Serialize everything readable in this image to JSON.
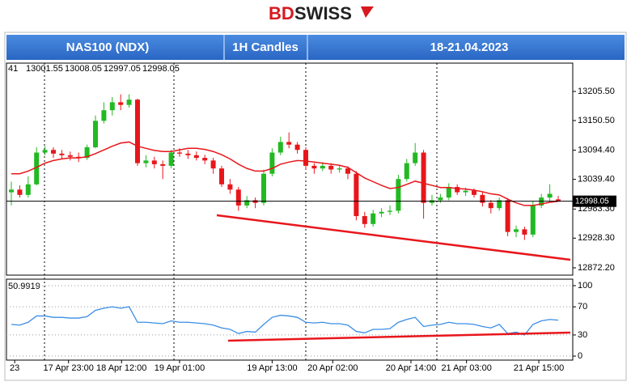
{
  "brand": [
    "BD",
    "SWISS"
  ],
  "header": {
    "instrument": "NAS100 (NDX)",
    "timeframe": "1H Candles",
    "dates": "18-21.04.2023"
  },
  "chart_data": [
    {
      "type": "candlestick",
      "symbol_code": "41",
      "up_color": "#22b922",
      "down_color": "#e8161b",
      "ylim": [
        12858.4,
        13259
      ],
      "yticks": [
        {
          "value": 13205.5,
          "label": "13205.50"
        },
        {
          "value": 13150.5,
          "label": "13150.50"
        },
        {
          "value": 13094.4,
          "label": "13094.40"
        },
        {
          "value": 13039.4,
          "label": "13039.40"
        },
        {
          "value": 12983.3,
          "label": "12983.30"
        },
        {
          "value": 12928.3,
          "label": "12928.30"
        },
        {
          "value": 12872.2,
          "label": "12872.20"
        }
      ],
      "xticks": [
        {
          "value": 0.4,
          "label": "23"
        },
        {
          "value": 6.8,
          "label": "17 Apr 23:00"
        },
        {
          "value": 13.1,
          "label": "18 Apr 12:00"
        },
        {
          "value": 20,
          "label": "19 Apr 01:00"
        },
        {
          "value": 31,
          "label": "19 Apr 13:00"
        },
        {
          "value": 38.2,
          "label": "20 Apr 02:00"
        },
        {
          "value": 47.5,
          "label": "20 Apr 14:00"
        },
        {
          "value": 54.1,
          "label": "21 Apr 03:00"
        },
        {
          "value": 62.7,
          "label": "21 Apr 15:00"
        }
      ],
      "candles": [
        [
          13015,
          13035,
          12990,
          13020
        ],
        [
          13020,
          13028,
          13005,
          13010
        ],
        [
          13010,
          13045,
          13005,
          13030
        ],
        [
          13030,
          13100,
          13028,
          13090
        ],
        [
          13090,
          13102,
          13085,
          13095
        ],
        [
          13095,
          13100,
          13080,
          13088
        ],
        [
          13088,
          13095,
          13078,
          13085
        ],
        [
          13085,
          13092,
          13075,
          13082
        ],
        [
          13082,
          13090,
          13072,
          13080
        ],
        [
          13080,
          13105,
          13076,
          13100
        ],
        [
          13100,
          13160,
          13098,
          13150
        ],
        [
          13150,
          13185,
          13145,
          13170
        ],
        [
          13170,
          13195,
          13160,
          13185
        ],
        [
          13185,
          13200,
          13170,
          13180
        ],
        [
          13180,
          13200,
          13175,
          13190
        ],
        [
          13190,
          13192,
          13065,
          13070
        ],
        [
          13070,
          13085,
          13062,
          13075
        ],
        [
          13075,
          13082,
          13060,
          13068
        ],
        [
          13068,
          13075,
          13040,
          13065
        ],
        [
          13065,
          13095,
          13060,
          13090
        ],
        [
          13090,
          13098,
          13082,
          13088
        ],
        [
          13088,
          13095,
          13078,
          13085
        ],
        [
          13085,
          13092,
          13075,
          13080
        ],
        [
          13080,
          13086,
          13068,
          13075
        ],
        [
          13075,
          13080,
          13050,
          13060
        ],
        [
          13060,
          13065,
          13025,
          13030
        ],
        [
          13030,
          13040,
          13012,
          13020
        ],
        [
          13020,
          13025,
          12980,
          12990
        ],
        [
          12990,
          13008,
          12985,
          13000
        ],
        [
          13000,
          13005,
          12985,
          12995
        ],
        [
          12995,
          13058,
          12990,
          13050
        ],
        [
          13050,
          13098,
          13045,
          13090
        ],
        [
          13090,
          13120,
          13085,
          13110
        ],
        [
          13110,
          13128,
          13098,
          13105
        ],
        [
          13105,
          13110,
          13088,
          13095
        ],
        [
          13095,
          13100,
          13058,
          13065
        ],
        [
          13065,
          13070,
          13050,
          13060
        ],
        [
          13060,
          13072,
          13055,
          13065
        ],
        [
          13065,
          13070,
          13050,
          13058
        ],
        [
          13058,
          13066,
          13052,
          13060
        ],
        [
          13060,
          13064,
          13040,
          13050
        ],
        [
          13050,
          13055,
          12962,
          12970
        ],
        [
          12970,
          12978,
          12948,
          12955
        ],
        [
          12955,
          12982,
          12950,
          12975
        ],
        [
          12975,
          12985,
          12968,
          12978
        ],
        [
          12978,
          12990,
          12972,
          12980
        ],
        [
          12980,
          13048,
          12975,
          13040
        ],
        [
          13040,
          13078,
          13035,
          13070
        ],
        [
          13070,
          13108,
          13065,
          13090
        ],
        [
          13090,
          13095,
          12965,
          12995
        ],
        [
          12995,
          13010,
          12990,
          13000
        ],
        [
          13000,
          13012,
          12995,
          13005
        ],
        [
          13005,
          13032,
          13000,
          13025
        ],
        [
          13025,
          13030,
          13010,
          13015
        ],
        [
          13015,
          13024,
          13008,
          13018
        ],
        [
          13018,
          13022,
          13005,
          13010
        ],
        [
          13010,
          13015,
          12988,
          12995
        ],
        [
          12995,
          13000,
          12975,
          12985
        ],
        [
          12985,
          13005,
          12980,
          13000
        ],
        [
          13000,
          13004,
          12932,
          12940
        ],
        [
          12940,
          12952,
          12930,
          12945
        ],
        [
          12945,
          12950,
          12925,
          12935
        ],
        [
          12935,
          12998,
          12930,
          12990
        ],
        [
          12990,
          13012,
          12985,
          13005
        ],
        [
          13005,
          13030,
          12998,
          13012
        ],
        [
          13001.55,
          13008.05,
          12997.05,
          12998.05
        ]
      ],
      "ema": {
        "color": "#e8161b",
        "values": [
          13050,
          13050,
          13055,
          13062,
          13070,
          13075,
          13078,
          13080,
          13080,
          13082,
          13088,
          13095,
          13102,
          13108,
          13110,
          13102,
          13098,
          13094,
          13092,
          13092,
          13095,
          13098,
          13098,
          13096,
          13092,
          13086,
          13078,
          13068,
          13060,
          13055,
          13055,
          13060,
          13068,
          13072,
          13075,
          13074,
          13072,
          13070,
          13068,
          13066,
          13062,
          13052,
          13042,
          13035,
          13028,
          13022,
          13024,
          13030,
          13036,
          13032,
          13028,
          13024,
          13024,
          13022,
          13021,
          13019,
          13016,
          13012,
          13010,
          13002,
          12995,
          12990,
          12990,
          12993,
          12996,
          12998
        ]
      }
    },
    {
      "type": "line",
      "color": "#3a8ee6",
      "ylim": [
        -5.7,
        109.2
      ],
      "yticks": [
        100,
        70,
        30,
        0
      ],
      "values": [
        45,
        44,
        48,
        57,
        57,
        55,
        55,
        54,
        54,
        56,
        65,
        68,
        70,
        68,
        70,
        48,
        48,
        47,
        46,
        50,
        48,
        48,
        47,
        46,
        44,
        40,
        38,
        32,
        35,
        34,
        45,
        55,
        58,
        57,
        55,
        48,
        47,
        48,
        46,
        46,
        44,
        35,
        33,
        38,
        38,
        39,
        48,
        52,
        55,
        42,
        44,
        45,
        48,
        46,
        46,
        45,
        42,
        40,
        45,
        32,
        34,
        30,
        45,
        50,
        52,
        50.9919
      ]
    }
  ]
}
